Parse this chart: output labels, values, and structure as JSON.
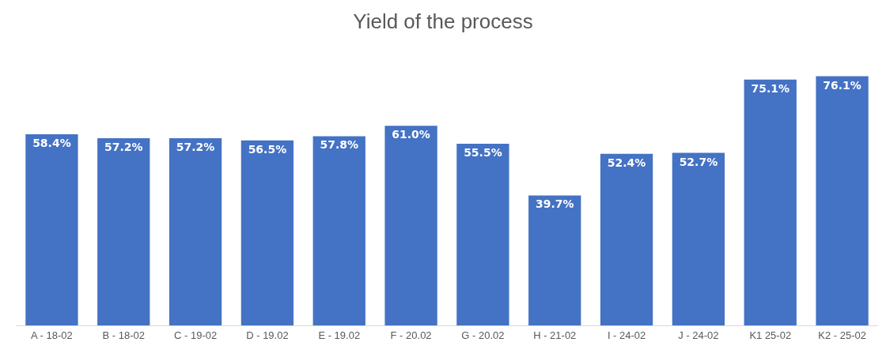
{
  "chart_data": {
    "type": "bar",
    "title": "Yield of the process",
    "categories": [
      "A - 18-02",
      "B - 18-02",
      "C - 19-02",
      "D - 19.02",
      "E - 19.02",
      "F - 20.02",
      "G - 20.02",
      "H - 21-02",
      "I - 24-02",
      "J - 24-02",
      "K1 25-02",
      "K2 - 25-02"
    ],
    "values": [
      58.4,
      57.2,
      57.2,
      56.5,
      57.8,
      61.0,
      55.5,
      39.7,
      52.4,
      52.7,
      75.1,
      76.1
    ],
    "value_labels": [
      "58.4%",
      "57.2%",
      "57.2%",
      "56.5%",
      "57.8%",
      "61.0%",
      "55.5%",
      "39.7%",
      "52.4%",
      "52.7%",
      "75.1%",
      "76.1%"
    ],
    "color": "#4472c4"
  }
}
